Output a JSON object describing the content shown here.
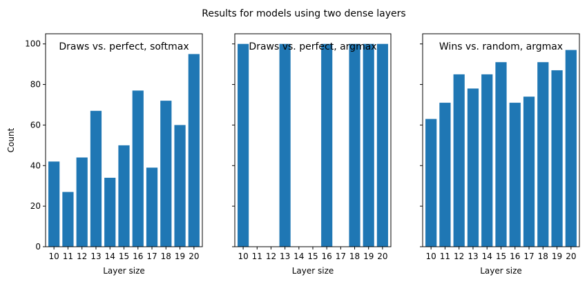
{
  "figure": {
    "suptitle": "Results for models using two dense layers",
    "bar_color": "#1f77b4"
  },
  "chart_data": [
    {
      "type": "bar",
      "title": "Draws vs. perfect, softmax",
      "xlabel": "Layer size",
      "ylabel": "Count",
      "categories": [
        "10",
        "11",
        "12",
        "13",
        "14",
        "15",
        "16",
        "17",
        "18",
        "19",
        "20"
      ],
      "values": [
        42,
        27,
        44,
        67,
        34,
        50,
        77,
        39,
        72,
        60,
        95
      ],
      "ylim": [
        0,
        105
      ],
      "yticks": [
        "0",
        "20",
        "40",
        "60",
        "80",
        "100"
      ],
      "show_ytick_labels": true
    },
    {
      "type": "bar",
      "title": "Draws vs. perfect, argmax",
      "xlabel": "Layer size",
      "ylabel": "",
      "categories": [
        "10",
        "11",
        "12",
        "13",
        "14",
        "15",
        "16",
        "17",
        "18",
        "19",
        "20"
      ],
      "values": [
        100,
        0,
        0,
        100,
        0,
        0,
        100,
        0,
        100,
        100,
        100
      ],
      "ylim": [
        0,
        105
      ],
      "yticks": [
        "0",
        "20",
        "40",
        "60",
        "80",
        "100"
      ],
      "show_ytick_labels": false
    },
    {
      "type": "bar",
      "title": "Wins vs. random, argmax",
      "xlabel": "Layer size",
      "ylabel": "",
      "categories": [
        "10",
        "11",
        "12",
        "13",
        "14",
        "15",
        "16",
        "17",
        "18",
        "19",
        "20"
      ],
      "values": [
        63,
        71,
        85,
        78,
        85,
        91,
        71,
        74,
        91,
        87,
        97
      ],
      "ylim": [
        0,
        105
      ],
      "yticks": [
        "0",
        "20",
        "40",
        "60",
        "80",
        "100"
      ],
      "show_ytick_labels": false
    }
  ]
}
